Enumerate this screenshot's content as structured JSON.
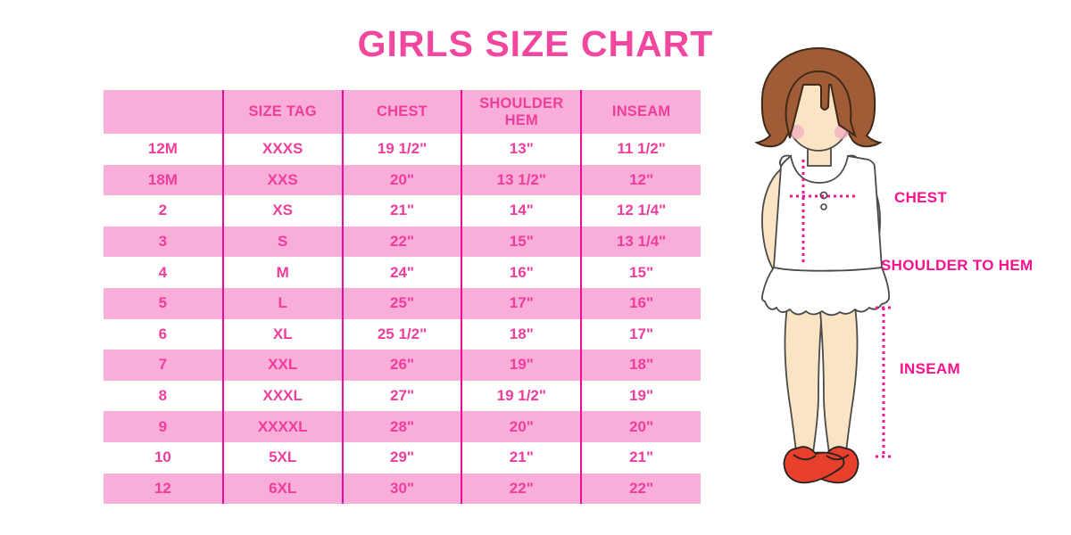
{
  "chart_data": {
    "type": "table",
    "title": "GIRLS SIZE CHART",
    "columns": [
      "",
      "SIZE TAG",
      "CHEST",
      "SHOULDER HEM",
      "INSEAM"
    ],
    "rows": [
      [
        "12M",
        "XXXS",
        "19 1/2\"",
        "13\"",
        "11 1/2\""
      ],
      [
        "18M",
        "XXS",
        "20\"",
        "13 1/2\"",
        "12\""
      ],
      [
        "2",
        "XS",
        "21\"",
        "14\"",
        "12 1/4\""
      ],
      [
        "3",
        "S",
        "22\"",
        "15\"",
        "13 1/4\""
      ],
      [
        "4",
        "M",
        "24\"",
        "16\"",
        "15\""
      ],
      [
        "5",
        "L",
        "25\"",
        "17\"",
        "16\""
      ],
      [
        "6",
        "XL",
        "25 1/2\"",
        "18\"",
        "17\""
      ],
      [
        "7",
        "XXL",
        "26\"",
        "19\"",
        "18\""
      ],
      [
        "8",
        "XXXL",
        "27\"",
        "19 1/2\"",
        "19\""
      ],
      [
        "9",
        "XXXXL",
        "28\"",
        "20\"",
        "20\""
      ],
      [
        "10",
        "5XL",
        "29\"",
        "21\"",
        "21\""
      ],
      [
        "12",
        "6XL",
        "30\"",
        "22\"",
        "22\""
      ]
    ],
    "layout": {
      "row_striping": "white and pink alternating",
      "legend": "none",
      "grid": "vertical dividers only"
    }
  },
  "figure": {
    "labels": {
      "chest": "CHEST",
      "shoulder_to_hem": "SHOULDER TO HEM",
      "inseam": "INSEAM"
    }
  },
  "colors": {
    "title_pink": "#F2479E",
    "row_pink": "#F9AEDA",
    "divider_pink": "#EB0D9A",
    "text_pink": "#EF3D9B",
    "label_pink": "#F9128F",
    "skin": "#FAE4C3",
    "hair": "#9F5C36",
    "hair_outline": "#3F2A1A",
    "blush": "#F2AFC0",
    "shoe_red": "#E8402A",
    "outline": "#4A4A4A"
  }
}
